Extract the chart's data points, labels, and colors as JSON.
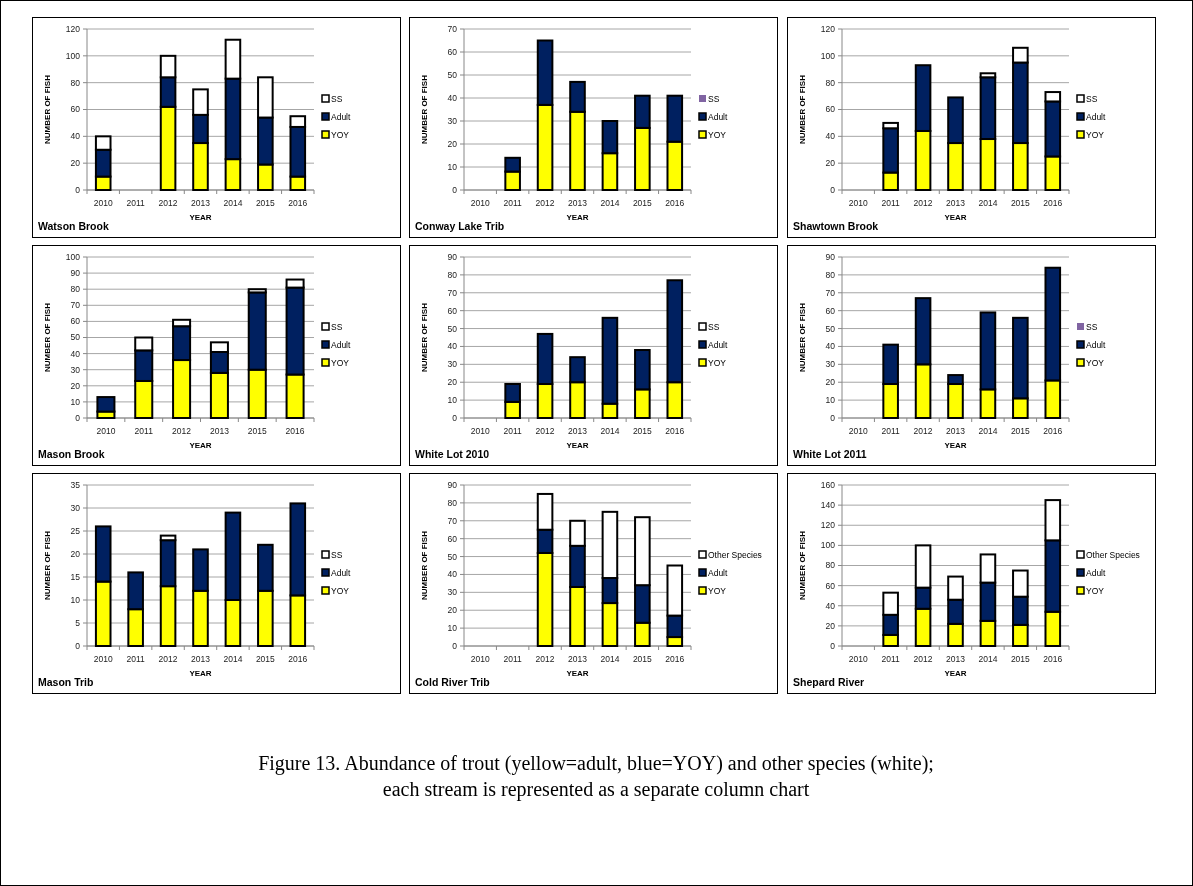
{
  "chart_data": [
    {
      "type": "bar",
      "stacked": true,
      "title": "Watson Brook",
      "xlabel": "YEAR",
      "ylabel": "NUMBER  OF FISH",
      "categories": [
        "2010",
        "2011",
        "2012",
        "2013",
        "2014",
        "2015",
        "2016"
      ],
      "ylim": [
        0,
        120
      ],
      "yticks": [
        0,
        20,
        40,
        60,
        80,
        100,
        120
      ],
      "grid": "y",
      "legend": "right",
      "series": [
        {
          "name": "YOY",
          "color": "#ffff00",
          "values": [
            10,
            null,
            62,
            35,
            23,
            19,
            10
          ]
        },
        {
          "name": "Adult",
          "color": "#002060",
          "values": [
            20,
            null,
            22,
            21,
            60,
            35,
            37
          ]
        },
        {
          "name": "SS",
          "color": "#ffffff",
          "values": [
            10,
            null,
            16,
            19,
            29,
            30,
            8
          ]
        }
      ]
    },
    {
      "type": "bar",
      "stacked": true,
      "title": "Conway Lake Trib",
      "xlabel": "YEAR",
      "ylabel": "NUMBER  OF FISH",
      "categories": [
        "2010",
        "2011",
        "2012",
        "2013",
        "2014",
        "2015",
        "2016"
      ],
      "ylim": [
        0,
        70
      ],
      "yticks": [
        0,
        10,
        20,
        30,
        40,
        50,
        60,
        70
      ],
      "grid": "y",
      "legend": "right",
      "series": [
        {
          "name": "YOY",
          "color": "#ffff00",
          "values": [
            null,
            8,
            37,
            34,
            16,
            27,
            21
          ]
        },
        {
          "name": "Adult",
          "color": "#002060",
          "values": [
            null,
            6,
            28,
            13,
            14,
            14,
            20
          ]
        },
        {
          "name": "SS",
          "color": "#8064a2",
          "values": [
            null,
            null,
            null,
            null,
            null,
            null,
            null
          ]
        }
      ]
    },
    {
      "type": "bar",
      "stacked": true,
      "title": "Shawtown Brook",
      "xlabel": "YEAR",
      "ylabel": "NUMBER  OF FISH",
      "categories": [
        "2010",
        "2011",
        "2012",
        "2013",
        "2014",
        "2015",
        "2016"
      ],
      "ylim": [
        0,
        120
      ],
      "yticks": [
        0,
        20,
        40,
        60,
        80,
        100,
        120
      ],
      "grid": "y",
      "legend": "right",
      "series": [
        {
          "name": "YOY",
          "color": "#ffff00",
          "values": [
            null,
            13,
            44,
            35,
            38,
            35,
            25
          ]
        },
        {
          "name": "Adult",
          "color": "#002060",
          "values": [
            null,
            33,
            49,
            34,
            46,
            60,
            41
          ]
        },
        {
          "name": "SS",
          "color": "#ffffff",
          "values": [
            null,
            4,
            null,
            null,
            3,
            11,
            7
          ]
        }
      ]
    },
    {
      "type": "bar",
      "stacked": true,
      "title": "Mason Brook",
      "xlabel": "YEAR",
      "ylabel": "NUMBER  OF FISH",
      "categories": [
        "2010",
        "2011",
        "2012",
        "2013",
        "2015",
        "2016"
      ],
      "ylim": [
        0,
        100
      ],
      "yticks": [
        0,
        10,
        20,
        30,
        40,
        50,
        60,
        70,
        80,
        90,
        100
      ],
      "grid": "y",
      "legend": "right",
      "series": [
        {
          "name": "YOY",
          "color": "#ffff00",
          "values": [
            4,
            23,
            36,
            28,
            30,
            27
          ]
        },
        {
          "name": "Adult",
          "color": "#002060",
          "values": [
            9,
            19,
            21,
            13,
            48,
            54
          ]
        },
        {
          "name": "SS",
          "color": "#ffffff",
          "values": [
            null,
            8,
            4,
            6,
            2,
            5
          ]
        }
      ]
    },
    {
      "type": "bar",
      "stacked": true,
      "title": "White Lot 2010",
      "xlabel": "YEAR",
      "ylabel": "NUMBER  OF FISH",
      "categories": [
        "2010",
        "2011",
        "2012",
        "2013",
        "2014",
        "2015",
        "2016"
      ],
      "ylim": [
        0,
        90
      ],
      "yticks": [
        0,
        10,
        20,
        30,
        40,
        50,
        60,
        70,
        80,
        90
      ],
      "grid": "y",
      "legend": "right",
      "series": [
        {
          "name": "YOY",
          "color": "#ffff00",
          "values": [
            null,
            9,
            19,
            20,
            8,
            16,
            20
          ]
        },
        {
          "name": "Adult",
          "color": "#002060",
          "values": [
            null,
            10,
            28,
            14,
            48,
            22,
            57
          ]
        },
        {
          "name": "SS",
          "color": "#ffffff",
          "values": [
            null,
            null,
            null,
            null,
            null,
            null,
            null
          ]
        }
      ]
    },
    {
      "type": "bar",
      "stacked": true,
      "title": "White Lot 2011",
      "xlabel": "YEAR",
      "ylabel": "NUMBER  OF FISH",
      "categories": [
        "2010",
        "2011",
        "2012",
        "2013",
        "2014",
        "2015",
        "2016"
      ],
      "ylim": [
        0,
        90
      ],
      "yticks": [
        0,
        10,
        20,
        30,
        40,
        50,
        60,
        70,
        80,
        90
      ],
      "grid": "y",
      "legend": "right",
      "series": [
        {
          "name": "YOY",
          "color": "#ffff00",
          "values": [
            null,
            19,
            30,
            19,
            16,
            11,
            21
          ]
        },
        {
          "name": "Adult",
          "color": "#002060",
          "values": [
            null,
            22,
            37,
            5,
            43,
            45,
            63
          ]
        },
        {
          "name": "SS",
          "color": "#8064a2",
          "values": [
            null,
            null,
            null,
            null,
            null,
            null,
            null
          ]
        }
      ]
    },
    {
      "type": "bar",
      "stacked": true,
      "title": "Mason Trib",
      "xlabel": "YEAR",
      "ylabel": "NUMBER  OF FISH",
      "categories": [
        "2010",
        "2011",
        "2012",
        "2013",
        "2014",
        "2015",
        "2016"
      ],
      "ylim": [
        0,
        35
      ],
      "yticks": [
        0,
        5,
        10,
        15,
        20,
        25,
        30,
        35
      ],
      "grid": "y",
      "legend": "right",
      "series": [
        {
          "name": "YOY",
          "color": "#ffff00",
          "values": [
            14,
            8,
            13,
            12,
            10,
            12,
            11
          ]
        },
        {
          "name": "Adult",
          "color": "#002060",
          "values": [
            12,
            8,
            10,
            9,
            19,
            10,
            20
          ]
        },
        {
          "name": "SS",
          "color": "#ffffff",
          "values": [
            null,
            null,
            1,
            null,
            null,
            null,
            null
          ]
        }
      ]
    },
    {
      "type": "bar",
      "stacked": true,
      "title": "Cold River Trib",
      "xlabel": "YEAR",
      "ylabel": "NUMBER  OF FISH",
      "categories": [
        "2010",
        "2011",
        "2012",
        "2013",
        "2014",
        "2015",
        "2016"
      ],
      "ylim": [
        0,
        90
      ],
      "yticks": [
        0,
        10,
        20,
        30,
        40,
        50,
        60,
        70,
        80,
        90
      ],
      "grid": "y",
      "legend": "right",
      "series": [
        {
          "name": "YOY",
          "color": "#ffff00",
          "values": [
            null,
            null,
            52,
            33,
            24,
            13,
            5
          ]
        },
        {
          "name": "Adult",
          "color": "#002060",
          "values": [
            null,
            null,
            13,
            23,
            14,
            21,
            12
          ]
        },
        {
          "name": "Other Species",
          "color": "#ffffff",
          "values": [
            null,
            null,
            20,
            14,
            37,
            38,
            28
          ]
        }
      ]
    },
    {
      "type": "bar",
      "stacked": true,
      "title": "Shepard River",
      "xlabel": "YEAR",
      "ylabel": "NUMBER  OF FISH",
      "categories": [
        "2010",
        "2011",
        "2012",
        "2013",
        "2014",
        "2015",
        "2016"
      ],
      "ylim": [
        0,
        160
      ],
      "yticks": [
        0,
        20,
        40,
        60,
        80,
        100,
        120,
        140,
        160
      ],
      "grid": "y",
      "legend": "right",
      "annotations": [
        "Figure 13. Abundance of trout (yellow=adult, blue=YOY) and other species (white); each stream is represented as a separate column chart"
      ],
      "series": [
        {
          "name": "YOY",
          "color": "#ffff00",
          "values": [
            null,
            11,
            37,
            22,
            25,
            21,
            34
          ]
        },
        {
          "name": "Adult",
          "color": "#002060",
          "values": [
            null,
            20,
            21,
            24,
            38,
            28,
            71
          ]
        },
        {
          "name": "Other Species",
          "color": "#ffffff",
          "values": [
            null,
            22,
            42,
            23,
            28,
            26,
            40
          ]
        }
      ]
    }
  ]
}
